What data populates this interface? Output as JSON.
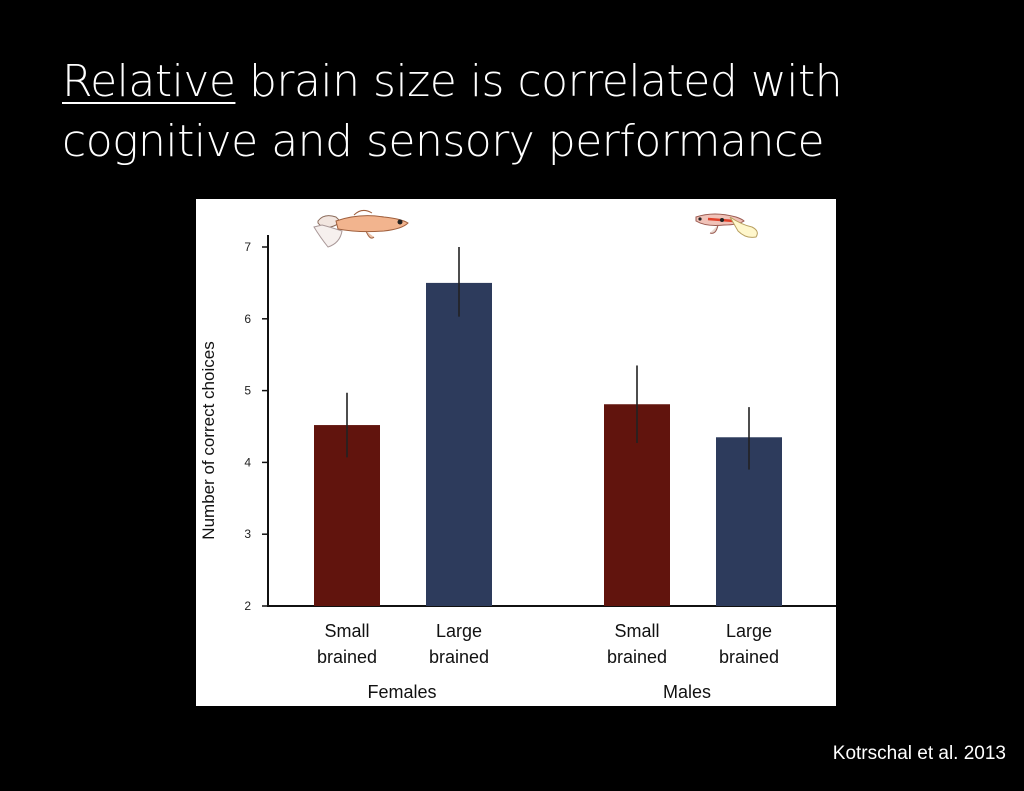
{
  "slide": {
    "title_underlined": "Relative",
    "title_rest_line1": " brain size is correlated with",
    "title_line2": "cognitive and sensory performance",
    "citation": "Kotrschal et al. 2013"
  },
  "colors": {
    "background": "#000000",
    "small_brained": "#61140d",
    "large_brained": "#2d3b5c",
    "error_bar": "#222222",
    "axis": "#111111"
  },
  "icons": {
    "females": "female-guppy-icon",
    "males": "male-guppy-icon"
  },
  "chart_data": {
    "type": "bar",
    "title": "",
    "xlabel": "",
    "ylabel": "Number of correct choices",
    "ylim": [
      2,
      7
    ],
    "yticks": [
      2,
      3,
      4,
      5,
      6,
      7
    ],
    "grid": false,
    "groups": [
      {
        "name": "Females",
        "bars": [
          {
            "label_line1": "Small",
            "label_line2": "brained",
            "series": "small",
            "value": 4.52,
            "error_low": 4.07,
            "error_high": 4.97
          },
          {
            "label_line1": "Large",
            "label_line2": "brained",
            "series": "large",
            "value": 6.5,
            "error_low": 6.03,
            "error_high": 7.0
          }
        ]
      },
      {
        "name": "Males",
        "bars": [
          {
            "label_line1": "Small",
            "label_line2": "brained",
            "series": "small",
            "value": 4.81,
            "error_low": 4.27,
            "error_high": 5.35
          },
          {
            "label_line1": "Large",
            "label_line2": "brained",
            "series": "large",
            "value": 4.35,
            "error_low": 3.9,
            "error_high": 4.77
          }
        ]
      }
    ]
  }
}
